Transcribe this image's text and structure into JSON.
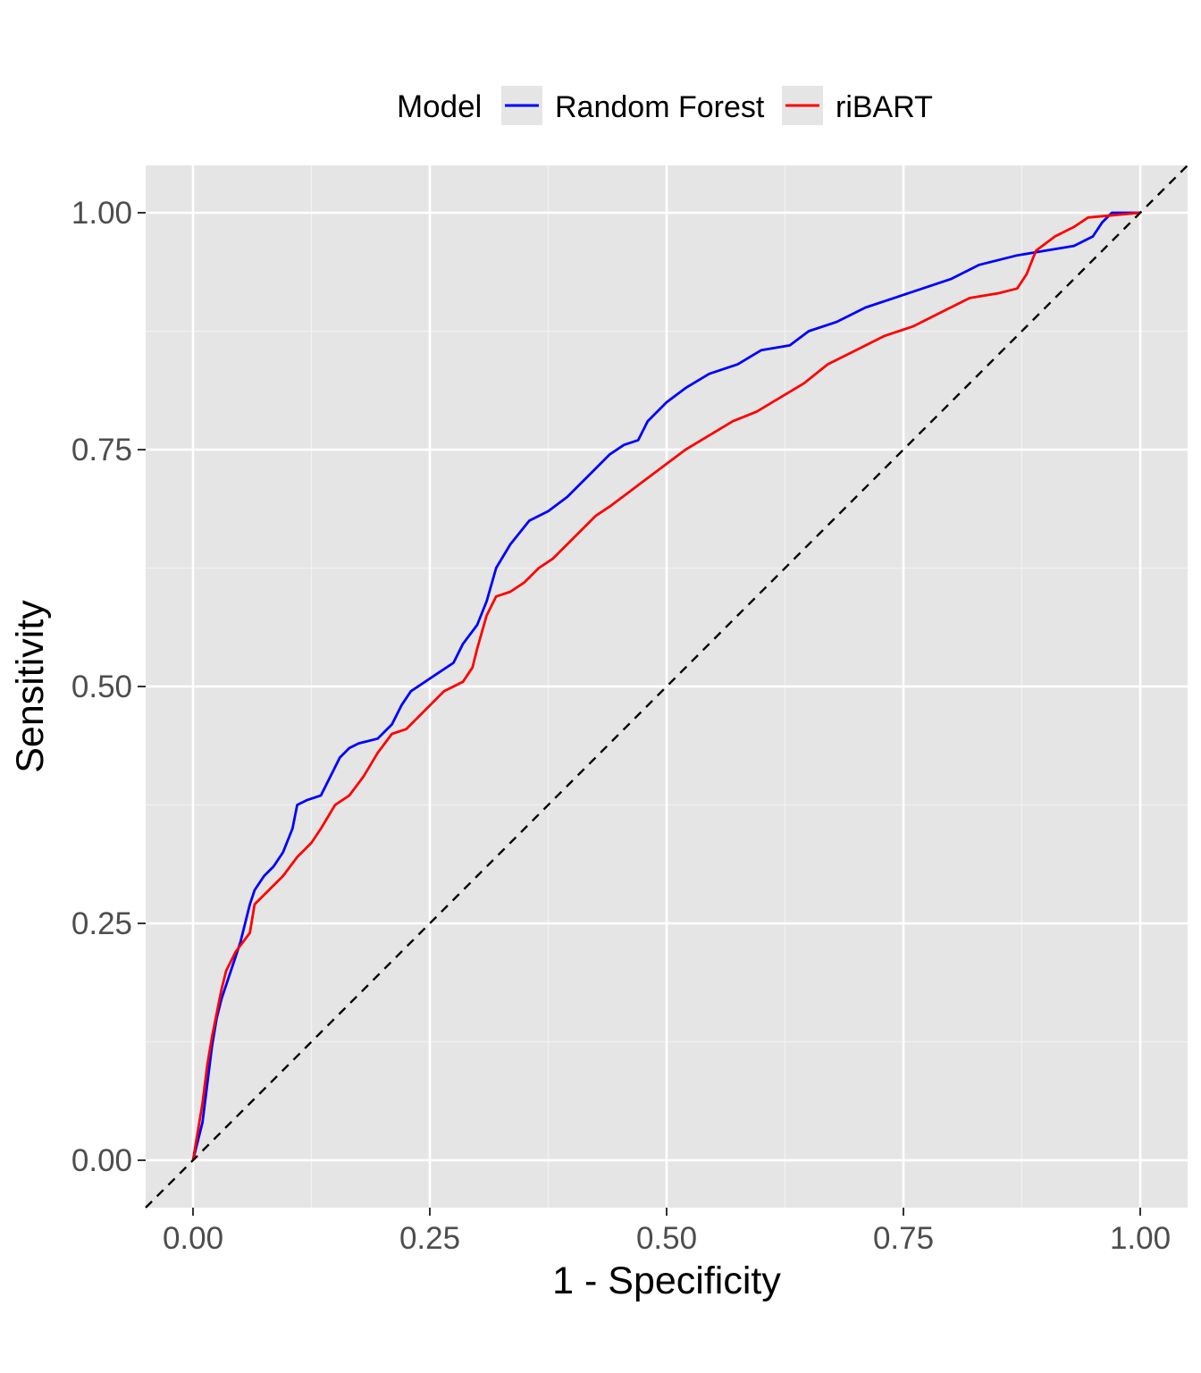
{
  "chart_data": {
    "type": "line",
    "title": "",
    "xlabel": "1 - Specificity",
    "ylabel": "Sensitivity",
    "xlim": [
      -0.05,
      1.05
    ],
    "ylim": [
      -0.05,
      1.05
    ],
    "x_ticks": [
      "0.00",
      "0.25",
      "0.50",
      "0.75",
      "1.00"
    ],
    "y_ticks": [
      "0.00",
      "0.25",
      "0.50",
      "0.75",
      "1.00"
    ],
    "grid": true,
    "legend": {
      "title": "Model",
      "position": "top"
    },
    "reference_line": {
      "style": "dashed",
      "color": "#000000",
      "from": [
        -0.05,
        -0.05
      ],
      "to": [
        1.05,
        1.05
      ]
    },
    "series": [
      {
        "name": "Random Forest",
        "color": "#0000ff",
        "points": [
          [
            0.0,
            0.0
          ],
          [
            0.005,
            0.02
          ],
          [
            0.01,
            0.04
          ],
          [
            0.015,
            0.08
          ],
          [
            0.02,
            0.12
          ],
          [
            0.025,
            0.15
          ],
          [
            0.03,
            0.17
          ],
          [
            0.04,
            0.2
          ],
          [
            0.05,
            0.23
          ],
          [
            0.055,
            0.25
          ],
          [
            0.06,
            0.27
          ],
          [
            0.065,
            0.285
          ],
          [
            0.075,
            0.3
          ],
          [
            0.085,
            0.31
          ],
          [
            0.095,
            0.325
          ],
          [
            0.105,
            0.35
          ],
          [
            0.11,
            0.375
          ],
          [
            0.12,
            0.38
          ],
          [
            0.135,
            0.385
          ],
          [
            0.145,
            0.405
          ],
          [
            0.155,
            0.425
          ],
          [
            0.165,
            0.435
          ],
          [
            0.175,
            0.44
          ],
          [
            0.195,
            0.445
          ],
          [
            0.21,
            0.46
          ],
          [
            0.22,
            0.48
          ],
          [
            0.23,
            0.495
          ],
          [
            0.245,
            0.505
          ],
          [
            0.26,
            0.515
          ],
          [
            0.275,
            0.525
          ],
          [
            0.285,
            0.545
          ],
          [
            0.3,
            0.565
          ],
          [
            0.31,
            0.59
          ],
          [
            0.32,
            0.625
          ],
          [
            0.335,
            0.65
          ],
          [
            0.355,
            0.675
          ],
          [
            0.375,
            0.685
          ],
          [
            0.395,
            0.7
          ],
          [
            0.41,
            0.715
          ],
          [
            0.425,
            0.73
          ],
          [
            0.44,
            0.745
          ],
          [
            0.455,
            0.755
          ],
          [
            0.47,
            0.76
          ],
          [
            0.48,
            0.78
          ],
          [
            0.5,
            0.8
          ],
          [
            0.52,
            0.815
          ],
          [
            0.545,
            0.83
          ],
          [
            0.575,
            0.84
          ],
          [
            0.6,
            0.855
          ],
          [
            0.63,
            0.86
          ],
          [
            0.65,
            0.875
          ],
          [
            0.68,
            0.885
          ],
          [
            0.71,
            0.9
          ],
          [
            0.74,
            0.91
          ],
          [
            0.77,
            0.92
          ],
          [
            0.8,
            0.93
          ],
          [
            0.83,
            0.945
          ],
          [
            0.87,
            0.955
          ],
          [
            0.9,
            0.96
          ],
          [
            0.93,
            0.965
          ],
          [
            0.95,
            0.975
          ],
          [
            0.96,
            0.99
          ],
          [
            0.97,
            1.0
          ],
          [
            1.0,
            1.0
          ]
        ]
      },
      {
        "name": "riBART",
        "color": "#ff0000",
        "points": [
          [
            0.0,
            0.0
          ],
          [
            0.005,
            0.03
          ],
          [
            0.01,
            0.06
          ],
          [
            0.015,
            0.1
          ],
          [
            0.02,
            0.13
          ],
          [
            0.025,
            0.155
          ],
          [
            0.03,
            0.18
          ],
          [
            0.035,
            0.2
          ],
          [
            0.045,
            0.22
          ],
          [
            0.06,
            0.24
          ],
          [
            0.065,
            0.27
          ],
          [
            0.08,
            0.285
          ],
          [
            0.095,
            0.3
          ],
          [
            0.11,
            0.32
          ],
          [
            0.125,
            0.335
          ],
          [
            0.135,
            0.35
          ],
          [
            0.15,
            0.375
          ],
          [
            0.165,
            0.385
          ],
          [
            0.18,
            0.405
          ],
          [
            0.195,
            0.43
          ],
          [
            0.21,
            0.45
          ],
          [
            0.225,
            0.455
          ],
          [
            0.245,
            0.475
          ],
          [
            0.265,
            0.495
          ],
          [
            0.285,
            0.505
          ],
          [
            0.295,
            0.52
          ],
          [
            0.3,
            0.54
          ],
          [
            0.31,
            0.575
          ],
          [
            0.32,
            0.595
          ],
          [
            0.335,
            0.6
          ],
          [
            0.35,
            0.61
          ],
          [
            0.365,
            0.625
          ],
          [
            0.38,
            0.635
          ],
          [
            0.395,
            0.65
          ],
          [
            0.41,
            0.665
          ],
          [
            0.425,
            0.68
          ],
          [
            0.44,
            0.69
          ],
          [
            0.46,
            0.705
          ],
          [
            0.48,
            0.72
          ],
          [
            0.5,
            0.735
          ],
          [
            0.52,
            0.75
          ],
          [
            0.545,
            0.765
          ],
          [
            0.57,
            0.78
          ],
          [
            0.595,
            0.79
          ],
          [
            0.62,
            0.805
          ],
          [
            0.645,
            0.82
          ],
          [
            0.67,
            0.84
          ],
          [
            0.7,
            0.855
          ],
          [
            0.73,
            0.87
          ],
          [
            0.76,
            0.88
          ],
          [
            0.79,
            0.895
          ],
          [
            0.82,
            0.91
          ],
          [
            0.85,
            0.915
          ],
          [
            0.87,
            0.92
          ],
          [
            0.88,
            0.935
          ],
          [
            0.89,
            0.96
          ],
          [
            0.91,
            0.975
          ],
          [
            0.93,
            0.985
          ],
          [
            0.945,
            0.995
          ],
          [
            1.0,
            1.0
          ]
        ]
      }
    ]
  }
}
